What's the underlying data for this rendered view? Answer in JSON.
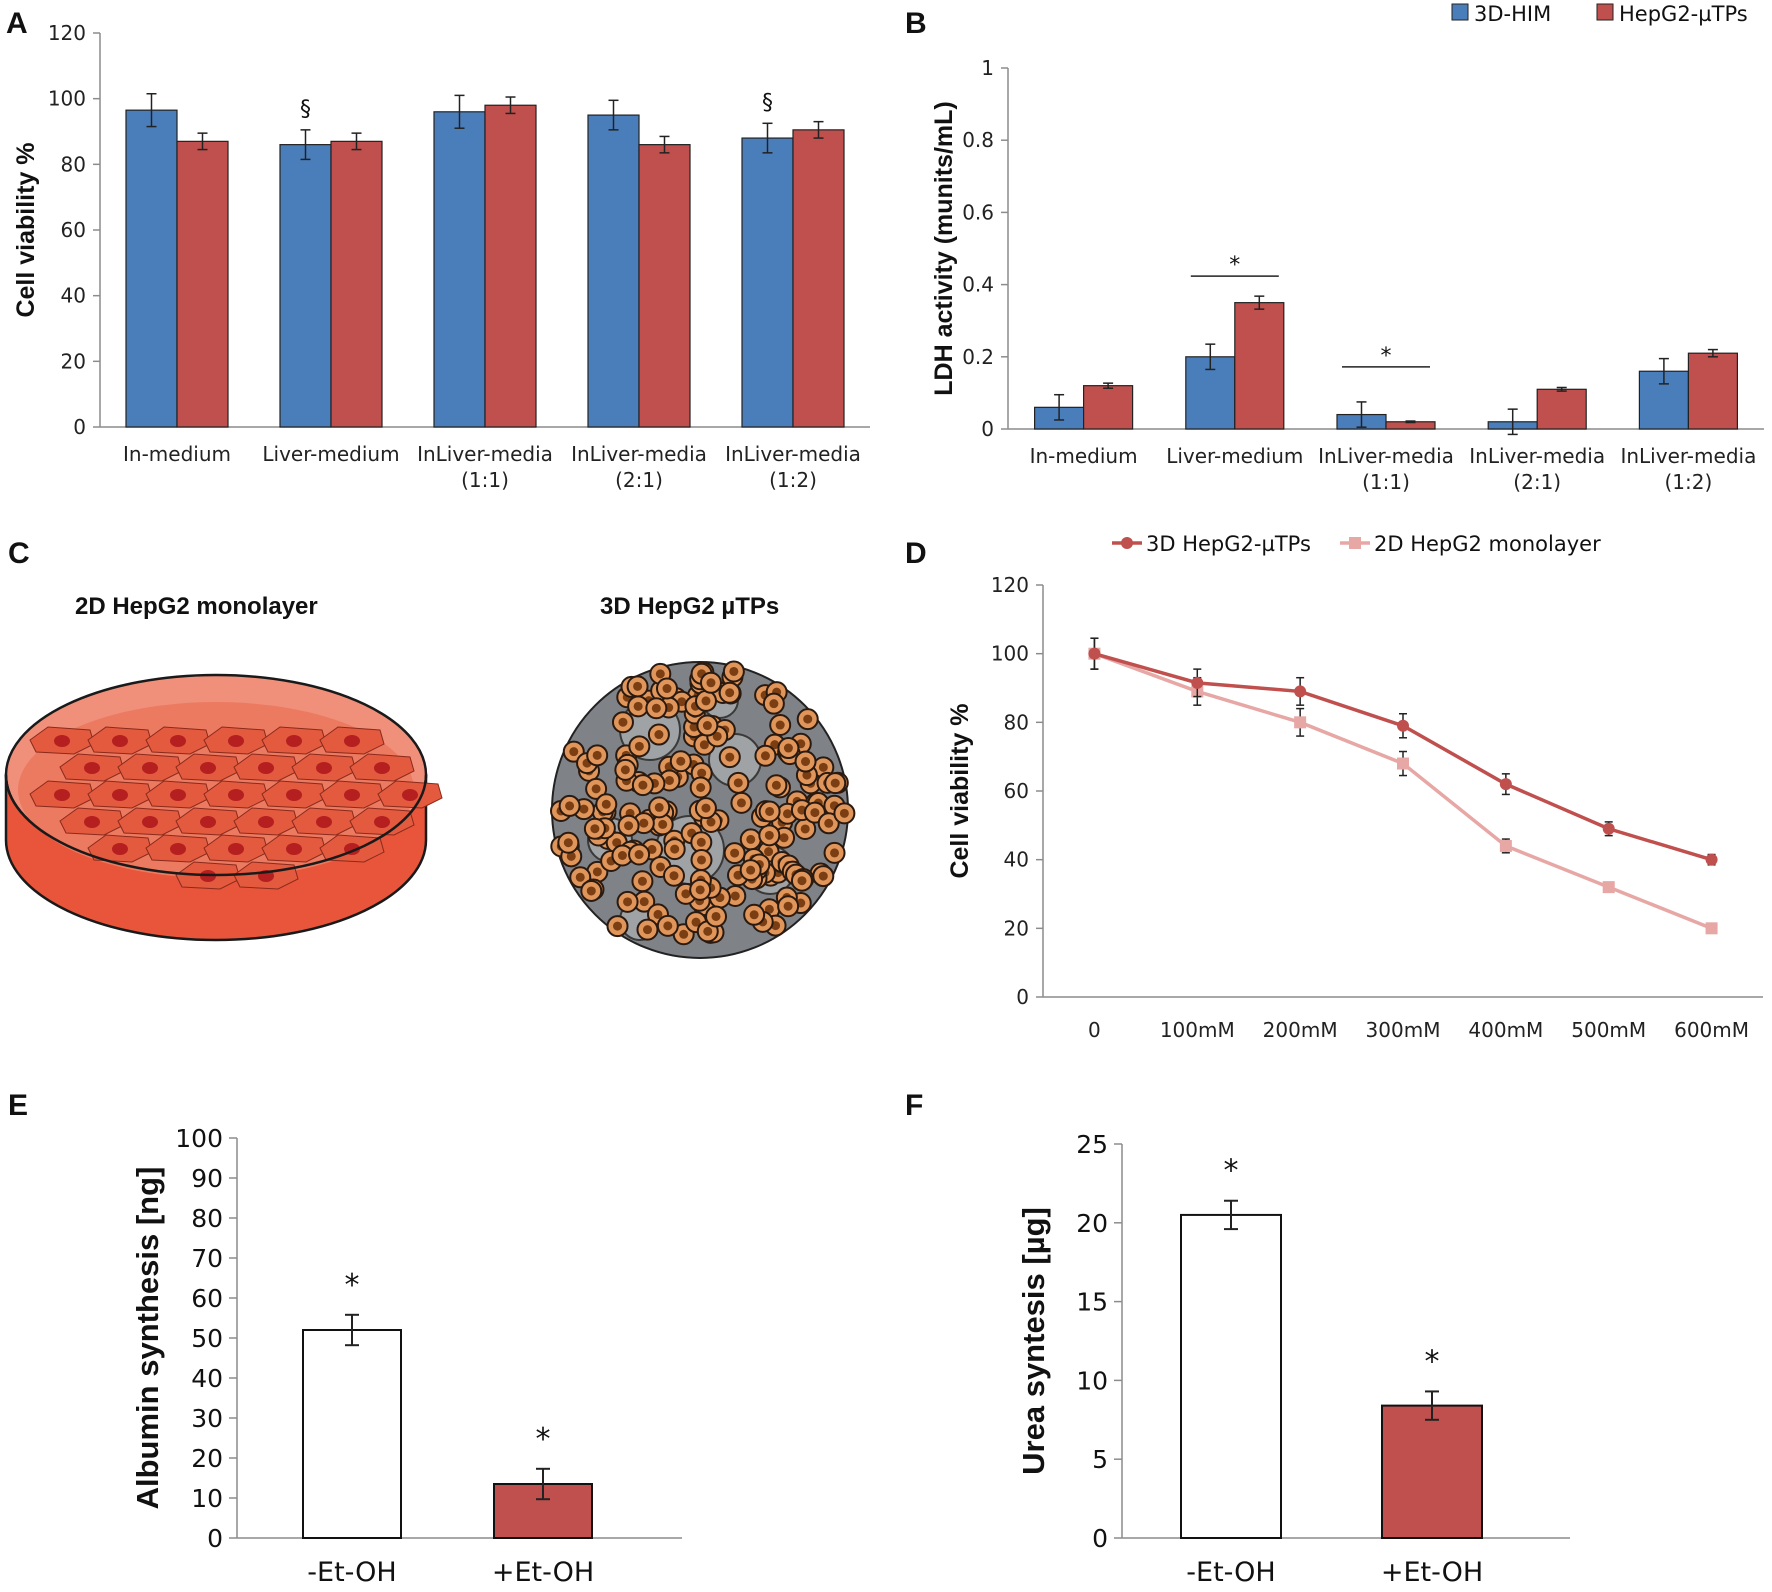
{
  "colors": {
    "blue": "#4a7ebb",
    "red": "#c0504d",
    "light_pink": "#e6a7a5",
    "axis": "#8c8c8c",
    "white": "#ffffff",
    "dish_orange": "#e8553a",
    "cell_orange": "#d9894d",
    "matrix_gray": "#7f8387"
  },
  "legend_ab": {
    "series1": "3D-HIM",
    "series2": "HepG2-µTPs"
  },
  "panels": {
    "A": {
      "letter": "A"
    },
    "B": {
      "letter": "B"
    },
    "C": {
      "letter": "C",
      "left_title": "2D HepG2 monolayer",
      "right_title": "3D HepG2 µTPs",
      "left_icon": "petri-dish-monolayer",
      "right_icon": "3d-microtissue-sphere"
    },
    "D": {
      "letter": "D"
    },
    "E": {
      "letter": "E"
    },
    "F": {
      "letter": "F"
    }
  },
  "chart_data": [
    {
      "panel": "A",
      "type": "bar",
      "ylabel": "Cell viability %",
      "xlabel": "",
      "ylim": [
        0,
        120
      ],
      "yticks": [
        0,
        20,
        40,
        60,
        80,
        100,
        120
      ],
      "categories": [
        [
          "In-medium"
        ],
        [
          "Liver-medium"
        ],
        [
          "InLiver-media",
          "(1:1)"
        ],
        [
          "InLiver-media",
          "(2:1)"
        ],
        [
          "InLiver-media",
          "(1:2)"
        ]
      ],
      "series": [
        {
          "name": "3D-HIM",
          "values": [
            96.5,
            86,
            96,
            95,
            88
          ],
          "errors": [
            5,
            4.5,
            5,
            4.5,
            4.5
          ]
        },
        {
          "name": "HepG2-µTPs",
          "values": [
            87,
            87,
            98,
            86,
            90.5
          ],
          "errors": [
            2.5,
            2.5,
            2.5,
            2.5,
            2.5
          ]
        }
      ],
      "annotations": [
        {
          "text": "§",
          "category_index": 1,
          "series_index": 0
        },
        {
          "text": "§",
          "category_index": 4,
          "series_index": 0
        }
      ]
    },
    {
      "panel": "B",
      "type": "bar",
      "ylabel": "LDH activity (munits/mL)",
      "xlabel": "",
      "ylim": [
        0,
        1
      ],
      "yticks": [
        "0",
        "0.2",
        "0.4",
        "0.6",
        "0.8",
        "1"
      ],
      "categories": [
        [
          "In-medium"
        ],
        [
          "Liver-medium"
        ],
        [
          "InLiver-media",
          "(1:1)"
        ],
        [
          "InLiver-media",
          "(2:1)"
        ],
        [
          "InLiver-media",
          "(1:2)"
        ]
      ],
      "series": [
        {
          "name": "3D-HIM",
          "values": [
            0.06,
            0.2,
            0.04,
            0.02,
            0.16
          ],
          "errors": [
            0.035,
            0.035,
            0.035,
            0.035,
            0.035
          ]
        },
        {
          "name": "HepG2-µTPs",
          "values": [
            0.12,
            0.35,
            0.02,
            0.11,
            0.21
          ],
          "errors": [
            0.007,
            0.018,
            0.002,
            0.005,
            0.01
          ]
        }
      ],
      "annotations": [
        {
          "text": "*",
          "category_index": 1
        },
        {
          "text": "*",
          "category_index": 2
        }
      ],
      "legend_position": "top-right"
    },
    {
      "panel": "D",
      "type": "line",
      "ylabel": "Cell viability %",
      "xlabel": "",
      "ylim": [
        0,
        120
      ],
      "yticks": [
        0,
        20,
        40,
        60,
        80,
        100,
        120
      ],
      "x": [
        "0",
        "100mM",
        "200mM",
        "300mM",
        "400mM",
        "500mM",
        "600mM"
      ],
      "series": [
        {
          "name": "3D HepG2-µTPs",
          "marker": "circle",
          "values": [
            100,
            91.5,
            89,
            79,
            62,
            49,
            40
          ],
          "errors": [
            4.5,
            4,
            4,
            3.5,
            3,
            2,
            1.5
          ]
        },
        {
          "name": "2D HepG2 monolayer",
          "marker": "square",
          "values": [
            100,
            89,
            80,
            68,
            44,
            32,
            20
          ],
          "errors": [
            4.5,
            4,
            4,
            3.5,
            2,
            1,
            0.5
          ]
        }
      ],
      "legend_position": "top"
    },
    {
      "panel": "E",
      "type": "bar",
      "ylabel": "Albumin synthesis [ng]",
      "xlabel": "",
      "ylim": [
        0,
        100
      ],
      "yticks": [
        0,
        10,
        20,
        30,
        40,
        50,
        60,
        70,
        80,
        90,
        100
      ],
      "categories": [
        "-Et-OH",
        "+Et-OH"
      ],
      "values": [
        52,
        13.5
      ],
      "errors": [
        3.8,
        3.8
      ],
      "fills": [
        "white",
        "red"
      ],
      "annotations": [
        "*",
        "*"
      ]
    },
    {
      "panel": "F",
      "type": "bar",
      "ylabel": "Urea syntesis [µg]",
      "xlabel": "",
      "ylim": [
        0,
        25
      ],
      "yticks": [
        0,
        5,
        10,
        15,
        20,
        25
      ],
      "categories": [
        "-Et-OH",
        "+Et-OH"
      ],
      "values": [
        20.5,
        8.4
      ],
      "errors": [
        0.9,
        0.9
      ],
      "fills": [
        "white",
        "red"
      ],
      "annotations": [
        "*",
        "*"
      ]
    }
  ]
}
